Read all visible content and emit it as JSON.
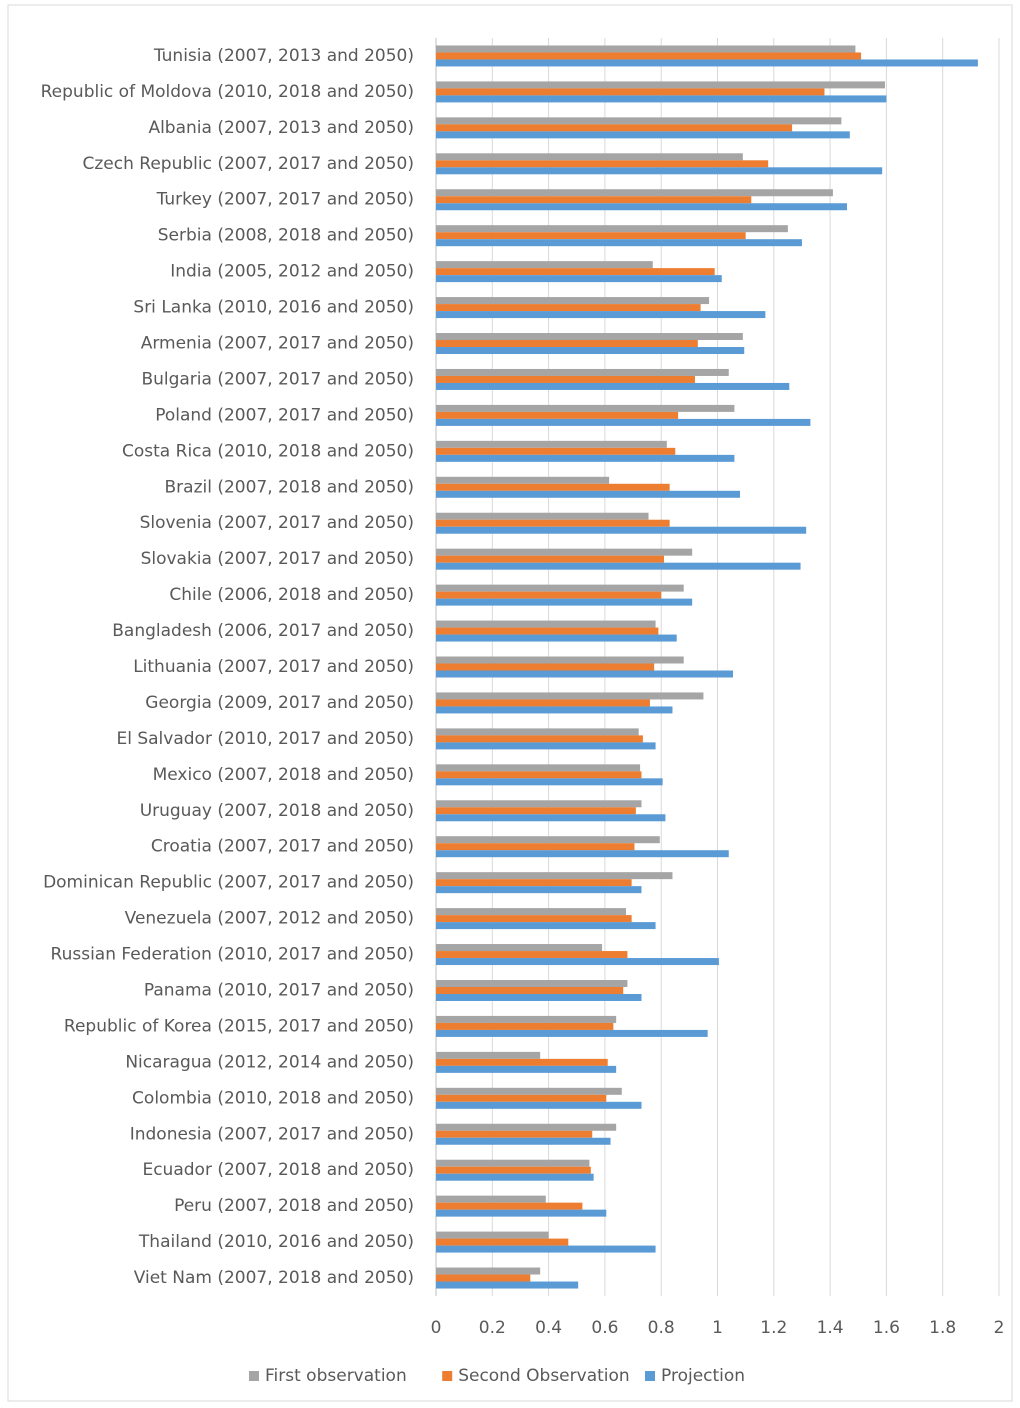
{
  "chart_data": {
    "type": "hbar",
    "categories": [
      "Tunisia (2007, 2013 and 2050)",
      "Republic of Moldova (2010, 2018 and 2050)",
      "Albania (2007, 2013 and 2050)",
      "Czech Republic (2007, 2017 and 2050)",
      "Turkey (2007, 2017 and 2050)",
      "Serbia (2008, 2018 and 2050)",
      "India (2005, 2012 and 2050)",
      "Sri Lanka (2010, 2016 and 2050)",
      "Armenia (2007, 2017 and 2050)",
      "Bulgaria (2007, 2017 and 2050)",
      "Poland (2007, 2017 and 2050)",
      "Costa Rica (2010, 2018 and 2050)",
      "Brazil (2007, 2018 and 2050)",
      "Slovenia (2007, 2017 and 2050)",
      "Slovakia (2007, 2017 and 2050)",
      "Chile (2006, 2018 and 2050)",
      "Bangladesh (2006, 2017 and 2050)",
      "Lithuania (2007, 2017 and 2050)",
      "Georgia (2009, 2017 and 2050)",
      "El Salvador (2010, 2017 and 2050)",
      "Mexico (2007, 2018 and 2050)",
      "Uruguay (2007, 2018 and 2050)",
      "Croatia (2007, 2017 and 2050)",
      "Dominican Republic (2007, 2017 and 2050)",
      "Venezuela (2007, 2012 and 2050)",
      "Russian Federation (2010, 2017 and 2050)",
      "Panama (2010, 2017 and 2050)",
      "Republic of Korea (2015, 2017 and 2050)",
      "Nicaragua (2012, 2014 and 2050)",
      "Colombia (2010, 2018 and 2050)",
      "Indonesia (2007, 2017 and 2050)",
      "Ecuador (2007, 2018 and 2050)",
      "Peru (2007, 2018 and 2050)",
      "Thailand (2010, 2016 and 2050)",
      "Viet Nam (2007, 2018 and 2050)"
    ],
    "series": [
      {
        "name": "First observation",
        "color": "#a5a5a5",
        "values": [
          1.49,
          1.595,
          1.44,
          1.09,
          1.41,
          1.25,
          0.77,
          0.97,
          1.09,
          1.04,
          1.06,
          0.82,
          0.615,
          0.755,
          0.91,
          0.88,
          0.78,
          0.88,
          0.95,
          0.72,
          0.725,
          0.73,
          0.795,
          0.84,
          0.675,
          0.59,
          0.68,
          0.64,
          0.37,
          0.66,
          0.64,
          0.545,
          0.39,
          0.4,
          0.37
        ]
      },
      {
        "name": "Second Observation",
        "color": "#ed7d31",
        "values": [
          1.51,
          1.38,
          1.265,
          1.18,
          1.12,
          1.1,
          0.99,
          0.94,
          0.93,
          0.92,
          0.86,
          0.85,
          0.83,
          0.83,
          0.81,
          0.8,
          0.79,
          0.775,
          0.76,
          0.735,
          0.73,
          0.71,
          0.705,
          0.695,
          0.695,
          0.68,
          0.665,
          0.63,
          0.61,
          0.605,
          0.555,
          0.55,
          0.52,
          0.47,
          0.335
        ]
      },
      {
        "name": "Projection",
        "color": "#5b9bd5",
        "values": [
          1.925,
          1.6,
          1.47,
          1.585,
          1.46,
          1.3,
          1.015,
          1.17,
          1.095,
          1.255,
          1.33,
          1.06,
          1.08,
          1.315,
          1.295,
          0.91,
          0.855,
          1.055,
          0.84,
          0.78,
          0.805,
          0.815,
          1.04,
          0.73,
          0.78,
          1.005,
          0.73,
          0.965,
          0.64,
          0.73,
          0.62,
          0.56,
          0.605,
          0.78,
          0.505
        ]
      }
    ],
    "xlim": [
      0,
      2
    ],
    "xticks": [
      0,
      0.2,
      0.4,
      0.6,
      0.8,
      1,
      1.2,
      1.4,
      1.6,
      1.8,
      2
    ],
    "grid": true,
    "legend": "bottom"
  }
}
